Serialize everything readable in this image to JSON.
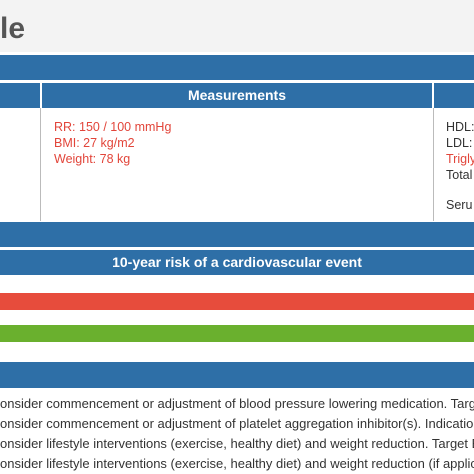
{
  "header": {
    "title": "le"
  },
  "table": {
    "measurements_header": "Measurements",
    "measurements": [
      "RR: 150 / 100 mmHg",
      "BMI: 27 kg/m2",
      "Weight: 78 kg"
    ],
    "lab_values": [
      "HDL:",
      "LDL:",
      "Trigly",
      "Total",
      "Seru"
    ],
    "risk_header": "10-year risk of a cardiovascular event"
  },
  "recommendations": [
    "onsider commencement or adjustment of blood pressure lowering medication. Targ",
    "onsider commencement or adjustment of platelet aggregation inhibitor(s). Indicatio",
    "onsider lifestyle interventions (exercise, healthy diet) and weight reduction. Target B",
    "onsider lifestyle interventions (exercise, healthy diet) and weight reduction (if applic"
  ]
}
